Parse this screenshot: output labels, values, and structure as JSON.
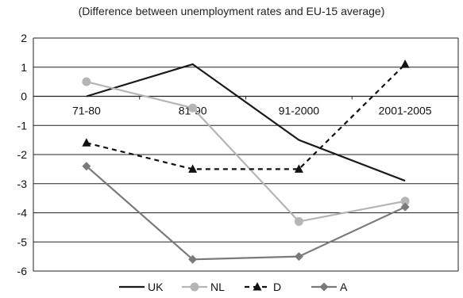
{
  "chart_data": {
    "type": "line",
    "title": "(Difference between unemployment rates and EU-15 average)",
    "xlabel": "",
    "ylabel": "",
    "categories": [
      "71-80",
      "81-90",
      "91-2000",
      "2001-2005"
    ],
    "ylim": [
      -6,
      2
    ],
    "yticks": [
      2,
      1,
      0,
      -1,
      -2,
      -3,
      -4,
      -5,
      -6
    ],
    "grid": true,
    "legend_position": "bottom",
    "series": [
      {
        "name": "UK",
        "values": [
          0.0,
          1.1,
          -1.5,
          -2.9
        ],
        "color": "#1a1a1a",
        "marker": "none",
        "dash": "solid"
      },
      {
        "name": "NL",
        "values": [
          0.5,
          -0.4,
          -4.3,
          -3.6
        ],
        "color": "#b5b5b5",
        "marker": "circle",
        "dash": "solid"
      },
      {
        "name": "D",
        "values": [
          -1.6,
          -2.5,
          -2.5,
          1.1
        ],
        "color": "#111111",
        "marker": "triangle",
        "dash": "dashed"
      },
      {
        "name": "A",
        "values": [
          -2.4,
          -5.6,
          -5.5,
          -3.8
        ],
        "color": "#7a7a7a",
        "marker": "diamond",
        "dash": "solid"
      }
    ]
  }
}
